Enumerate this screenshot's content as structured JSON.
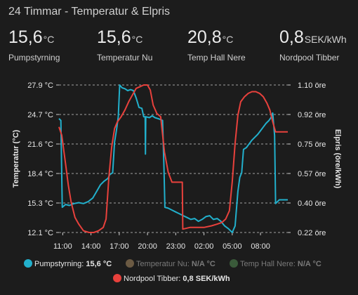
{
  "card": {
    "title": "24 Timmar - Temperatur & Elpris"
  },
  "stats": [
    {
      "value": "15,6",
      "unit": "°C",
      "name": "Pumpstyrning"
    },
    {
      "value": "15,6",
      "unit": "°C",
      "name": "Temperatur Nu"
    },
    {
      "value": "20,8",
      "unit": "°C",
      "name": "Temp Hall Nere"
    },
    {
      "value": "0,8",
      "unit": "SEK/kWh",
      "name": "Nordpool Tibber"
    }
  ],
  "colors": {
    "pump": "#22b0cc",
    "temp_nu": "#6b5a43",
    "temp_hall": "#3a5a3a",
    "nordpool": "#e8413c",
    "grid": "#cfcfcf"
  },
  "chart_data": {
    "type": "line",
    "x_tick_labels": [
      "11:00",
      "14:00",
      "17:00",
      "20:00",
      "23:00",
      "02:00",
      "05:00",
      "08:00"
    ],
    "x_range_hours": [
      10.6,
      34.9
    ],
    "y_left": {
      "label": "Temperatur (°C)",
      "ticks": [
        "27.9 °C",
        "24.7 °C",
        "21.6 °C",
        "18.4 °C",
        "15.3 °C",
        "12.1 °C"
      ],
      "range": [
        12.1,
        27.9
      ]
    },
    "y_right": {
      "label": "Elpris (öre/kWh)",
      "ticks": [
        "1.10 öre",
        "0.92 öre",
        "0.75 öre",
        "0.57 öre",
        "0.40 öre",
        "0.22 öre"
      ],
      "range": [
        0.22,
        1.1
      ]
    },
    "series": [
      {
        "name": "Pumpstyrning",
        "legend": "Pumpstyrning: 15,6 °C",
        "axis": "left",
        "color": "#22b0cc",
        "active": true,
        "points": [
          [
            10.6,
            24.3
          ],
          [
            10.8,
            24.1
          ],
          [
            10.95,
            14.8
          ],
          [
            11.3,
            15.1
          ],
          [
            11.7,
            15.0
          ],
          [
            12.2,
            15.2
          ],
          [
            12.7,
            15.3
          ],
          [
            13.2,
            15.2
          ],
          [
            13.7,
            15.4
          ],
          [
            14.2,
            15.8
          ],
          [
            14.6,
            16.5
          ],
          [
            15.0,
            17.2
          ],
          [
            15.4,
            17.6
          ],
          [
            15.8,
            17.9
          ],
          [
            16.0,
            18.3
          ],
          [
            16.3,
            18.5
          ],
          [
            16.5,
            21.8
          ],
          [
            16.7,
            23.0
          ],
          [
            16.9,
            24.5
          ],
          [
            17.05,
            27.9
          ],
          [
            17.3,
            27.6
          ],
          [
            17.6,
            27.5
          ],
          [
            17.9,
            27.3
          ],
          [
            18.2,
            27.4
          ],
          [
            18.5,
            27.3
          ],
          [
            18.8,
            26.5
          ],
          [
            19.1,
            25.5
          ],
          [
            19.4,
            25.4
          ],
          [
            19.6,
            24.5
          ],
          [
            19.75,
            24.5
          ],
          [
            19.78,
            20.5
          ],
          [
            19.82,
            24.5
          ],
          [
            20.2,
            24.4
          ],
          [
            20.5,
            24.6
          ],
          [
            20.8,
            24.4
          ],
          [
            21.1,
            24.3
          ],
          [
            21.4,
            24.2
          ],
          [
            21.6,
            24.1
          ],
          [
            21.75,
            19.0
          ],
          [
            21.85,
            14.8
          ],
          [
            22.2,
            14.7
          ],
          [
            22.6,
            14.5
          ],
          [
            23.0,
            14.3
          ],
          [
            23.4,
            14.1
          ],
          [
            23.8,
            13.9
          ],
          [
            24.2,
            13.7
          ],
          [
            24.6,
            13.5
          ],
          [
            25.0,
            13.6
          ],
          [
            25.4,
            13.3
          ],
          [
            25.8,
            13.5
          ],
          [
            26.2,
            13.8
          ],
          [
            26.6,
            13.9
          ],
          [
            27.0,
            13.5
          ],
          [
            27.4,
            13.6
          ],
          [
            27.8,
            13.3
          ],
          [
            28.2,
            12.8
          ],
          [
            28.6,
            12.5
          ],
          [
            29.0,
            12.1
          ],
          [
            29.3,
            12.8
          ],
          [
            29.6,
            16.5
          ],
          [
            29.8,
            18.0
          ],
          [
            30.0,
            18.5
          ],
          [
            30.2,
            21.0
          ],
          [
            30.5,
            21.2
          ],
          [
            30.8,
            21.6
          ],
          [
            31.1,
            22.0
          ],
          [
            31.4,
            22.3
          ],
          [
            31.7,
            22.6
          ],
          [
            32.0,
            23.0
          ],
          [
            32.3,
            23.4
          ],
          [
            32.6,
            23.8
          ],
          [
            32.9,
            24.1
          ],
          [
            33.1,
            24.4
          ],
          [
            33.3,
            24.9
          ],
          [
            33.5,
            22.5
          ],
          [
            33.6,
            15.2
          ],
          [
            34.0,
            15.6
          ],
          [
            34.9,
            15.6
          ]
        ]
      },
      {
        "name": "Temperatur Nu",
        "legend": "Temperatur Nu: N/A °C",
        "axis": "left",
        "color": "#6b5a43",
        "active": false,
        "points": []
      },
      {
        "name": "Temp Hall Nere",
        "legend": "Temp Hall Nere: N/A °C",
        "axis": "left",
        "color": "#3a5a3a",
        "active": false,
        "points": []
      },
      {
        "name": "Nordpool Tibber",
        "legend": "Nordpool Tibber: 0,8 SEK/kWh",
        "axis": "right",
        "color": "#e8413c",
        "active": true,
        "points": [
          [
            10.6,
            0.85
          ],
          [
            10.9,
            0.8
          ],
          [
            11.3,
            0.63
          ],
          [
            11.6,
            0.5
          ],
          [
            11.9,
            0.4
          ],
          [
            12.3,
            0.31
          ],
          [
            12.7,
            0.27
          ],
          [
            13.2,
            0.23
          ],
          [
            13.8,
            0.22
          ],
          [
            14.3,
            0.22
          ],
          [
            14.8,
            0.23
          ],
          [
            15.3,
            0.25
          ],
          [
            15.6,
            0.3
          ],
          [
            15.9,
            0.55
          ],
          [
            16.2,
            0.73
          ],
          [
            16.5,
            0.84
          ],
          [
            16.8,
            0.88
          ],
          [
            17.2,
            0.91
          ],
          [
            17.6,
            0.95
          ],
          [
            18.0,
            1.0
          ],
          [
            18.4,
            1.04
          ],
          [
            18.8,
            1.08
          ],
          [
            19.2,
            1.09
          ],
          [
            19.6,
            1.1
          ],
          [
            20.0,
            1.1
          ],
          [
            20.3,
            1.07
          ],
          [
            20.6,
            0.98
          ],
          [
            21.0,
            0.93
          ],
          [
            21.4,
            0.91
          ],
          [
            21.8,
            0.7
          ],
          [
            22.2,
            0.58
          ],
          [
            22.6,
            0.52
          ],
          [
            23.0,
            0.52
          ],
          [
            23.4,
            0.52
          ],
          [
            23.7,
            0.52
          ],
          [
            23.75,
            0.24
          ],
          [
            24.5,
            0.25
          ],
          [
            25.2,
            0.25
          ],
          [
            26.0,
            0.25
          ],
          [
            26.8,
            0.26
          ],
          [
            27.4,
            0.27
          ],
          [
            27.9,
            0.28
          ],
          [
            28.3,
            0.3
          ],
          [
            28.7,
            0.35
          ],
          [
            29.0,
            0.52
          ],
          [
            29.3,
            0.75
          ],
          [
            29.6,
            0.92
          ],
          [
            29.9,
            1.0
          ],
          [
            30.3,
            1.03
          ],
          [
            30.7,
            1.05
          ],
          [
            31.1,
            1.06
          ],
          [
            31.5,
            1.06
          ],
          [
            31.9,
            1.05
          ],
          [
            32.3,
            1.03
          ],
          [
            32.7,
            0.99
          ],
          [
            33.0,
            0.95
          ],
          [
            33.3,
            0.88
          ],
          [
            33.6,
            0.82
          ],
          [
            34.0,
            0.82
          ],
          [
            34.9,
            0.82
          ]
        ]
      }
    ]
  }
}
